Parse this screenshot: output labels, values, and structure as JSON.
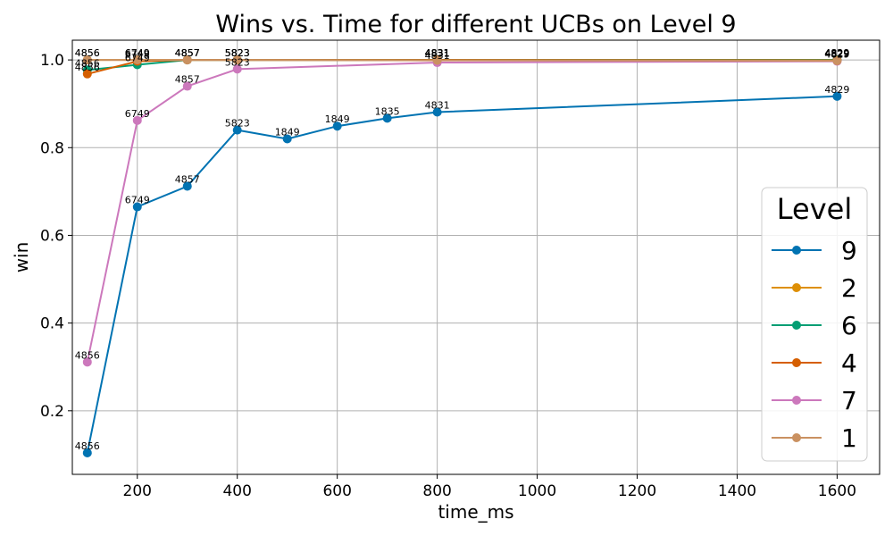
{
  "chart_data": {
    "type": "line",
    "title": "Wins vs. Time for different UCBs on Level 9",
    "xlabel": "time_ms",
    "ylabel": "win",
    "xlim": [
      70,
      1685
    ],
    "ylim": [
      0.055,
      1.045
    ],
    "xticks": [
      200,
      400,
      600,
      800,
      1000,
      1200,
      1400,
      1600
    ],
    "yticks": [
      0.2,
      0.4,
      0.6,
      0.8,
      1.0
    ],
    "xtick_labels": [
      "200",
      "400",
      "600",
      "800",
      "1000",
      "1200",
      "1400",
      "1600"
    ],
    "ytick_labels": [
      "0.2",
      "0.4",
      "0.6",
      "0.8",
      "1.0"
    ],
    "grid": true,
    "legend": {
      "title": "Level",
      "placement": "right"
    },
    "series": [
      {
        "name": "9",
        "color": "#0173b2",
        "x": [
          100,
          200,
          300,
          400,
          500,
          600,
          700,
          800,
          1600
        ],
        "y": [
          0.104,
          0.665,
          0.712,
          0.84,
          0.82,
          0.849,
          0.867,
          0.881,
          0.917
        ],
        "labels": [
          "4856",
          "6749",
          "4857",
          "5823",
          "1849",
          "1849",
          "1835",
          "4831",
          "4829"
        ]
      },
      {
        "name": "2",
        "color": "#de8f05",
        "x": [
          100,
          200,
          300,
          400,
          800,
          1600
        ],
        "y": [
          1.0,
          1.0,
          1.0,
          1.0,
          1.0,
          1.0
        ],
        "labels": [
          "4856",
          "6749",
          "4857",
          "5823",
          "4831",
          "4829"
        ]
      },
      {
        "name": "6",
        "color": "#029e73",
        "x": [
          100,
          200,
          300,
          400,
          800,
          1600
        ],
        "y": [
          0.977,
          0.989,
          1.0,
          1.0,
          1.0,
          1.0
        ],
        "labels": [
          "4856",
          "6749",
          "4857",
          "5823",
          "4831",
          "4829"
        ]
      },
      {
        "name": "4",
        "color": "#d55e00",
        "x": [
          100,
          200,
          300,
          400,
          800,
          1600
        ],
        "y": [
          0.968,
          0.997,
          1.0,
          1.0,
          1.0,
          0.999
        ],
        "labels": [
          "4856",
          "6749",
          "4857",
          "5823",
          "4831",
          "4829"
        ]
      },
      {
        "name": "7",
        "color": "#cc78bc",
        "x": [
          100,
          200,
          300,
          400,
          800,
          1600
        ],
        "y": [
          0.311,
          0.862,
          0.94,
          0.979,
          0.994,
          0.997
        ],
        "labels": [
          "4856",
          "6749",
          "4857",
          "5823",
          "4831",
          "4829"
        ]
      },
      {
        "name": "1",
        "color": "#ca9161",
        "x": [
          100,
          200,
          300,
          400,
          800,
          1600
        ],
        "y": [
          1.0,
          1.0,
          1.0,
          1.0,
          0.999,
          0.998
        ],
        "labels": [
          "4856",
          "6749",
          "4857",
          "5823",
          "4831",
          "4829"
        ]
      }
    ]
  }
}
